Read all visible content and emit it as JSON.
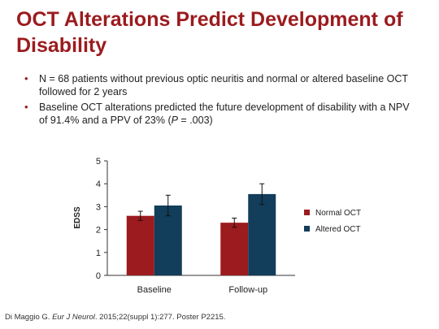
{
  "title": "OCT Alterations Predict Development of Disability",
  "bullets": [
    {
      "text": "N = 68 patients without previous optic neuritis and normal or altered baseline OCT followed for 2 years"
    },
    {
      "text_before": "Baseline OCT alterations predicted the future development of disability with a NPV of 91.4% and a PPV of 23% (",
      "p_italic": "P",
      "text_after": " = .003)"
    }
  ],
  "chart_data": {
    "type": "bar",
    "categories": [
      "Baseline",
      "Follow-up"
    ],
    "series": [
      {
        "name": "Normal OCT",
        "color": "#9b1b1e",
        "values": [
          2.6,
          2.3
        ],
        "errors": [
          0.2,
          0.2
        ]
      },
      {
        "name": "Altered OCT",
        "color": "#123d5b",
        "values": [
          3.05,
          3.55
        ],
        "errors": [
          0.45,
          0.45
        ]
      }
    ],
    "ylabel": "EDSS",
    "ylim": [
      0,
      5
    ],
    "yticks": [
      0,
      1,
      2,
      3,
      4,
      5
    ],
    "legend_position": "right"
  },
  "footer": {
    "author": "Di Maggio G. ",
    "journal": "Eur J Neurol",
    "rest": ". 2015;22(suppl 1):277. Poster P2215."
  }
}
